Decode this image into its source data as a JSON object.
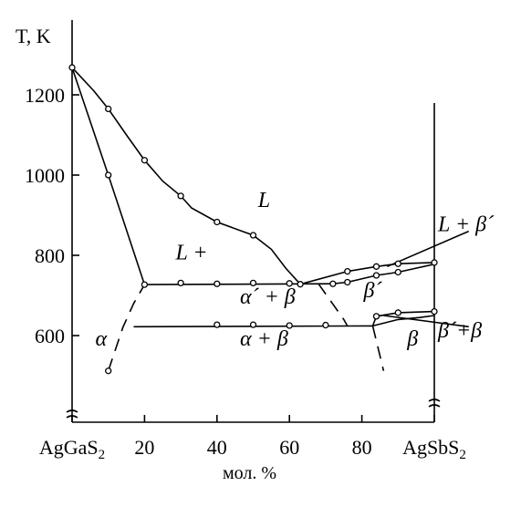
{
  "chart_data": {
    "type": "phase-diagram",
    "title": "",
    "ylabel": "T, K",
    "xlabel": "мол. %",
    "x_range": [
      0,
      100
    ],
    "y_range": [
      510,
      1330
    ],
    "y_ticks": [
      {
        "value": 600,
        "label": "600"
      },
      {
        "value": 800,
        "label": "800"
      },
      {
        "value": 1000,
        "label": "1000"
      },
      {
        "value": 1200,
        "label": "1200"
      }
    ],
    "x_ticks": [
      {
        "value": 0,
        "label": "AgGaS",
        "sub": "2"
      },
      {
        "value": 20,
        "label": "20"
      },
      {
        "value": 40,
        "label": "40"
      },
      {
        "value": 60,
        "label": "60"
      },
      {
        "value": 80,
        "label": "80"
      },
      {
        "value": 100,
        "label": "AgSbS",
        "sub": "2"
      }
    ],
    "curves": [
      {
        "name": "liquidus-left",
        "style": "solid",
        "points": [
          [
            0,
            1268
          ],
          [
            6,
            1210
          ],
          [
            10,
            1165
          ],
          [
            15,
            1100
          ],
          [
            20,
            1037
          ],
          [
            25,
            985
          ],
          [
            30,
            948
          ],
          [
            33,
            918
          ],
          [
            40,
            883
          ],
          [
            50,
            850
          ],
          [
            55,
            815
          ],
          [
            59,
            768
          ],
          [
            63,
            728
          ]
        ]
      },
      {
        "name": "solidus-alpha",
        "style": "solid",
        "points": [
          [
            0,
            1268
          ],
          [
            10,
            1000
          ],
          [
            20,
            727
          ]
        ]
      },
      {
        "name": "eutectic-line",
        "style": "solid",
        "points": [
          [
            20,
            727
          ],
          [
            72,
            729
          ]
        ]
      },
      {
        "name": "liquidus-right",
        "style": "solid",
        "points": [
          [
            63,
            728
          ],
          [
            76,
            760
          ],
          [
            84,
            772
          ],
          [
            90,
            779
          ],
          [
            100,
            782
          ]
        ]
      },
      {
        "name": "solidus-right",
        "style": "solid",
        "points": [
          [
            72,
            729
          ],
          [
            76,
            733
          ],
          [
            84,
            750
          ],
          [
            90,
            758
          ],
          [
            100,
            778
          ]
        ]
      },
      {
        "name": "eutectoid-line",
        "style": "solid",
        "points": [
          [
            17,
            622
          ],
          [
            83,
            624
          ]
        ]
      },
      {
        "name": "beta-transition-upper",
        "style": "solid",
        "points": [
          [
            83,
            624
          ],
          [
            84,
            648
          ],
          [
            90,
            657
          ],
          [
            100,
            660
          ]
        ]
      },
      {
        "name": "beta-transition-lower",
        "style": "solid",
        "points": [
          [
            83,
            624
          ],
          [
            90,
            640
          ],
          [
            96,
            645
          ],
          [
            100,
            650
          ]
        ]
      },
      {
        "name": "alpha-solvus",
        "style": "dash",
        "points": [
          [
            10,
            512
          ],
          [
            14,
            620
          ],
          [
            17,
            680
          ],
          [
            20,
            727
          ]
        ]
      },
      {
        "name": "alpha-beta-solvus",
        "style": "dash",
        "points": [
          [
            68,
            729
          ],
          [
            75,
            640
          ],
          [
            76,
            624
          ]
        ]
      },
      {
        "name": "beta-solvus",
        "style": "dash",
        "points": [
          [
            83,
            624
          ],
          [
            86,
            512
          ]
        ]
      }
    ],
    "points": [
      [
        0,
        1268
      ],
      [
        10,
        1165
      ],
      [
        10,
        1000
      ],
      [
        20,
        1037
      ],
      [
        30,
        948
      ],
      [
        40,
        883
      ],
      [
        50,
        850
      ],
      [
        60,
        730
      ],
      [
        20,
        727
      ],
      [
        30,
        731
      ],
      [
        40,
        729
      ],
      [
        50,
        731
      ],
      [
        63,
        728
      ],
      [
        72,
        729
      ],
      [
        76,
        733
      ],
      [
        76,
        760
      ],
      [
        84,
        772
      ],
      [
        84,
        750
      ],
      [
        90,
        779
      ],
      [
        90,
        758
      ],
      [
        100,
        782
      ],
      [
        40,
        627
      ],
      [
        50,
        627
      ],
      [
        60,
        625
      ],
      [
        70,
        626
      ],
      [
        84,
        648
      ],
      [
        90,
        657
      ],
      [
        100,
        660
      ],
      [
        10,
        512
      ]
    ],
    "region_labels": [
      {
        "text": "L",
        "x": 53,
        "y": 920
      },
      {
        "text": "L +",
        "x": 33,
        "y": 790
      },
      {
        "text": "α´ + β",
        "x": 54,
        "y": 680
      },
      {
        "text": "β´",
        "x": 83,
        "y": 695
      },
      {
        "text": "α",
        "x": 8,
        "y": 575
      },
      {
        "text": "α  + β",
        "x": 53,
        "y": 575
      },
      {
        "text": "β",
        "x": 94,
        "y": 575
      },
      {
        "text": "L + β´",
        "x": 110,
        "y": 860
      },
      {
        "text": "β´+β",
        "x": 111,
        "y": 595
      }
    ],
    "leader_lines": [
      {
        "from": [
          110,
          860
        ],
        "to": [
          87,
          772
        ]
      },
      {
        "from": [
          110,
          622
        ],
        "to": [
          86,
          650
        ]
      }
    ]
  }
}
